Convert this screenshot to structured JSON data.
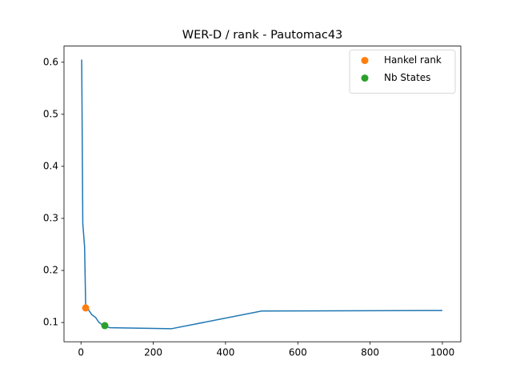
{
  "chart_data": {
    "type": "line",
    "title": "WER-D / rank - Pautomac43",
    "series": [
      {
        "color": "#1f77b4",
        "style": "line",
        "x": [
          2,
          5,
          10,
          13,
          20,
          30,
          40,
          50,
          64,
          80,
          250,
          500,
          1000
        ],
        "values": [
          0.605,
          0.29,
          0.245,
          0.13,
          0.125,
          0.115,
          0.11,
          0.1,
          0.093,
          0.09,
          0.088,
          0.122,
          0.123
        ]
      },
      {
        "name": "Hankel rank",
        "color": "#ff7f0e",
        "style": "point",
        "x": [
          13
        ],
        "values": [
          0.128
        ]
      },
      {
        "name": "Nb States",
        "color": "#2ca02c",
        "style": "point",
        "x": [
          66
        ],
        "values": [
          0.094
        ]
      }
    ],
    "xlim": [
      -47,
      1051
    ],
    "ylim": [
      0.063,
      0.631
    ],
    "xticks": [
      0,
      200,
      400,
      600,
      800,
      1000
    ],
    "yticks": [
      0.1,
      0.2,
      0.3,
      0.4,
      0.5,
      0.6
    ],
    "legend": "upper-right"
  }
}
